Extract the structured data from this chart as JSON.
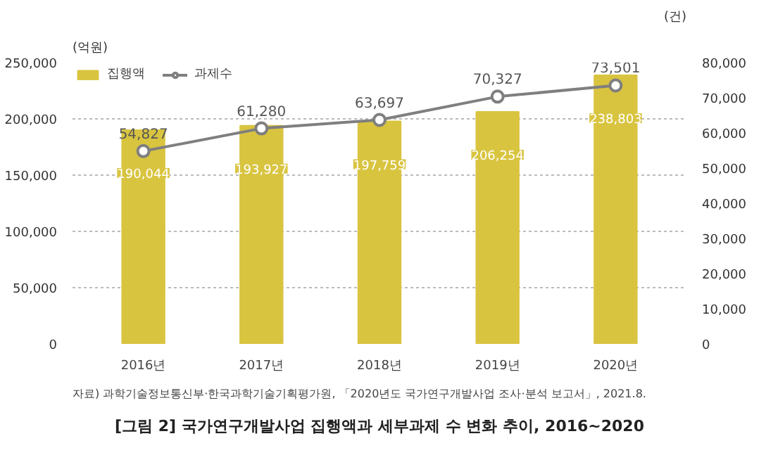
{
  "chart_data": {
    "type": "bar",
    "title": "[그림 2] 국가연구개발사업 집행액과 세부과제 수 변화 추이, 2016~2020",
    "annotations": [
      "자료) 과학기술정보통신부·한국과학기술기획평가원, 「2020년도 국가연구개발사업 조사·분석 보고서」, 2021.8."
    ],
    "ylabel": "(억원)",
    "y2label": "(건)",
    "categories": [
      "2016년",
      "2017년",
      "2018년",
      "2019년",
      "2020년"
    ],
    "series": [
      {
        "name": "집행액",
        "color": "#d9c440",
        "values": [
          190044,
          193927,
          197759,
          206254,
          238803
        ],
        "value_labels": [
          "190,044",
          "193,927",
          "197,759",
          "206,254",
          "238,803"
        ]
      },
      {
        "name": "과제수",
        "type": "line",
        "axis": "y2",
        "color": "#7f7f7f",
        "values": [
          54827,
          61280,
          63697,
          70327,
          73501
        ],
        "value_labels": [
          "54,827",
          "61,280",
          "63,697",
          "70,327",
          "73,501"
        ]
      }
    ],
    "ylim": [
      0,
      250000
    ],
    "yticks": [
      {
        "value": 0,
        "label": "0"
      },
      {
        "value": 50000,
        "label": "50,000"
      },
      {
        "value": 100000,
        "label": "100,000"
      },
      {
        "value": 150000,
        "label": "150,000"
      },
      {
        "value": 200000,
        "label": "200,000"
      },
      {
        "value": 250000,
        "label": "250,000"
      }
    ],
    "y2lim": [
      0,
      80000
    ],
    "y2ticks": [
      {
        "value": 0,
        "label": "0"
      },
      {
        "value": 10000,
        "label": "10,000"
      },
      {
        "value": 20000,
        "label": "20,000"
      },
      {
        "value": 30000,
        "label": "30,000"
      },
      {
        "value": 40000,
        "label": "40,000"
      },
      {
        "value": 50000,
        "label": "50,000"
      },
      {
        "value": 60000,
        "label": "60,000"
      },
      {
        "value": 70000,
        "label": "70,000"
      },
      {
        "value": 80000,
        "label": "80,000"
      }
    ],
    "grid": "y",
    "legend": "top left",
    "marker": "circle",
    "line_style": "solid"
  }
}
